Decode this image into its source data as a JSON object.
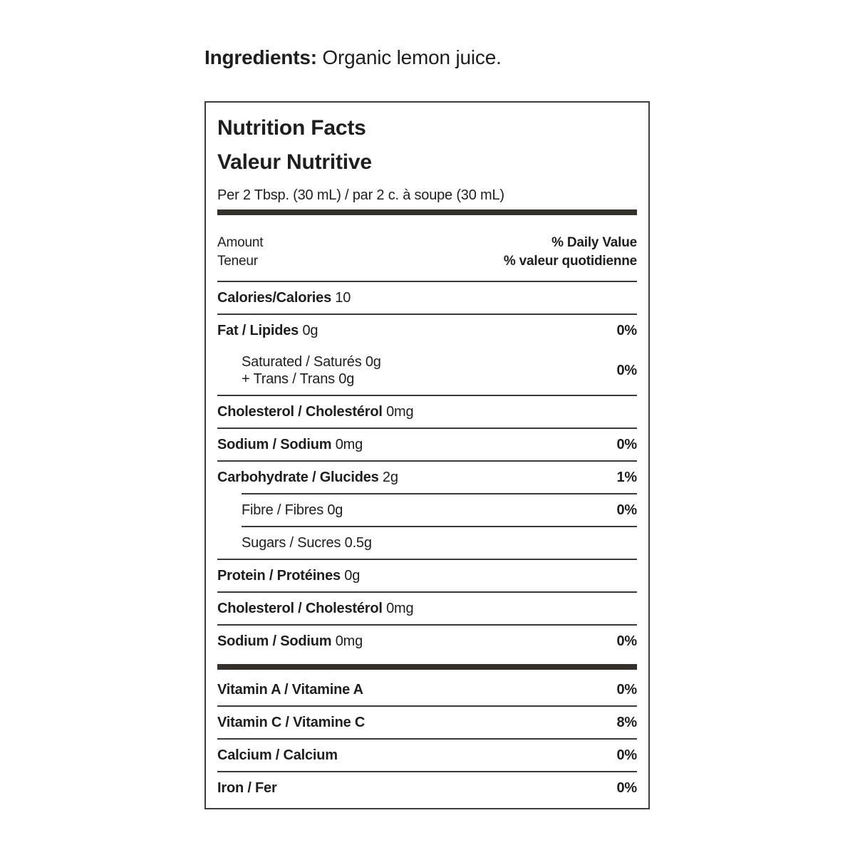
{
  "ingredients": {
    "label": "Ingredients:",
    "text": " Organic lemon juice."
  },
  "nutrition_label": {
    "title_en": "Nutrition Facts",
    "title_fr": "Valeur Nutritive",
    "serving_line": "Per 2 Tbsp. (30 mL) / par 2 c. à soupe (30 mL)",
    "header": {
      "amount_en": "Amount",
      "amount_fr": "Teneur",
      "daily_value_en": "% Daily Value",
      "daily_value_fr": "% valeur quotidienne"
    },
    "rows": [
      {
        "bold": "Calories/Calories",
        "plain": " 10",
        "value": "",
        "indent": false,
        "separator_after": "full"
      },
      {
        "bold": "Fat / Lipides",
        "plain": " 0g",
        "value": "0%",
        "indent": false,
        "separator_after": "none"
      },
      {
        "lines": [
          "Saturated / Saturés 0g",
          "+ Trans / Trans 0g"
        ],
        "value": "0%",
        "indent": true,
        "separator_after": "full"
      },
      {
        "bold": "Cholesterol / Cholestérol",
        "plain": " 0mg",
        "value": "",
        "indent": false,
        "separator_after": "full"
      },
      {
        "bold": "Sodium / Sodium",
        "plain": " 0mg",
        "value": "0%",
        "indent": false,
        "separator_after": "full"
      },
      {
        "bold": "Carbohydrate / Glucides",
        "plain": " 2g",
        "value": "1%",
        "indent": false,
        "separator_after": "indent"
      },
      {
        "plain": "Fibre / Fibres 0g",
        "value": "0%",
        "indent": true,
        "separator_after": "indent"
      },
      {
        "plain": "Sugars / Sucres 0.5g",
        "value": "",
        "indent": true,
        "separator_after": "full"
      },
      {
        "bold": "Protein / Protéines",
        "plain": " 0g",
        "value": "",
        "indent": false,
        "separator_after": "full"
      },
      {
        "bold": "Cholesterol / Cholestérol",
        "plain": " 0mg",
        "value": "",
        "indent": false,
        "separator_after": "full"
      },
      {
        "bold": "Sodium / Sodium",
        "plain": " 0mg",
        "value": "0%",
        "indent": false,
        "separator_after": "thick"
      },
      {
        "bold": "Vitamin A / Vitamine A",
        "plain": "",
        "value": "0%",
        "indent": false,
        "separator_after": "full"
      },
      {
        "bold": "Vitamin C / Vitamine C",
        "plain": "",
        "value": "8%",
        "indent": false,
        "separator_after": "full"
      },
      {
        "bold": "Calcium / Calcium",
        "plain": "",
        "value": "0%",
        "indent": false,
        "separator_after": "full"
      },
      {
        "bold": "Iron / Fer",
        "plain": "",
        "value": "0%",
        "indent": false,
        "separator_after": "none"
      }
    ],
    "colors": {
      "text": "#1e1e1e",
      "rule": "#3a3a3a",
      "thick_bar": "#33312a",
      "border": "#3e3e3c",
      "background": "#ffffff"
    }
  }
}
